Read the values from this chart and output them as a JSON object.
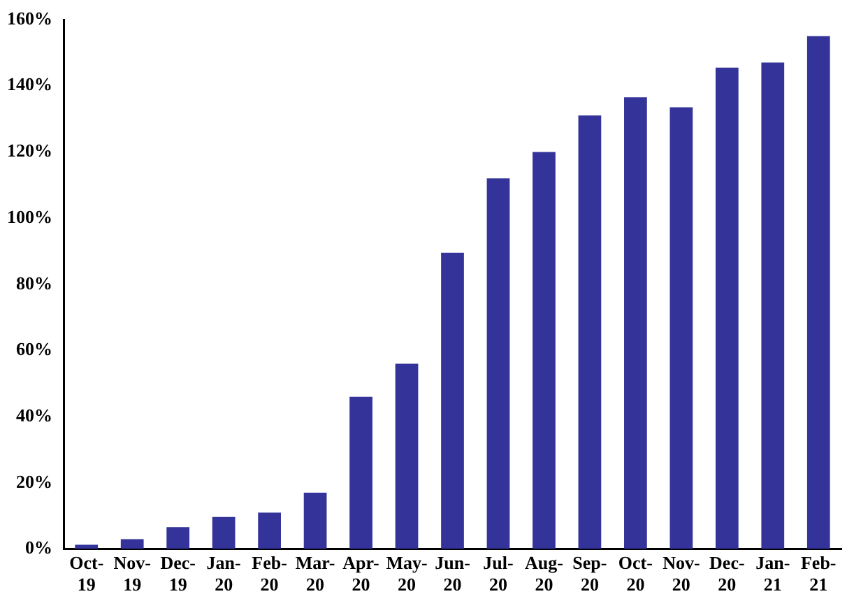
{
  "chart_data": {
    "type": "bar",
    "categories": [
      "Oct-19",
      "Nov-19",
      "Dec-19",
      "Jan-20",
      "Feb-20",
      "Mar-20",
      "Apr-20",
      "May-20",
      "Jun-20",
      "Jul-20",
      "Aug-20",
      "Sep-20",
      "Oct-20",
      "Nov-20",
      "Dec-20",
      "Jan-21",
      "Feb-21"
    ],
    "values": [
      1.3,
      3,
      6.6,
      9.7,
      11,
      17,
      46,
      56,
      89.5,
      112,
      120,
      131,
      136.5,
      133.5,
      145.5,
      147,
      155
    ],
    "color": "#333399",
    "ylim": [
      0,
      160
    ],
    "yticks": [
      {
        "value": 0,
        "label": "0%"
      },
      {
        "value": 20,
        "label": "20%"
      },
      {
        "value": 40,
        "label": "40%"
      },
      {
        "value": 60,
        "label": "60%"
      },
      {
        "value": 80,
        "label": "80%"
      },
      {
        "value": 100,
        "label": "100%"
      },
      {
        "value": 120,
        "label": "120%"
      },
      {
        "value": 140,
        "label": "140%"
      },
      {
        "value": 160,
        "label": "160%"
      }
    ],
    "grid": false,
    "legend": false
  }
}
